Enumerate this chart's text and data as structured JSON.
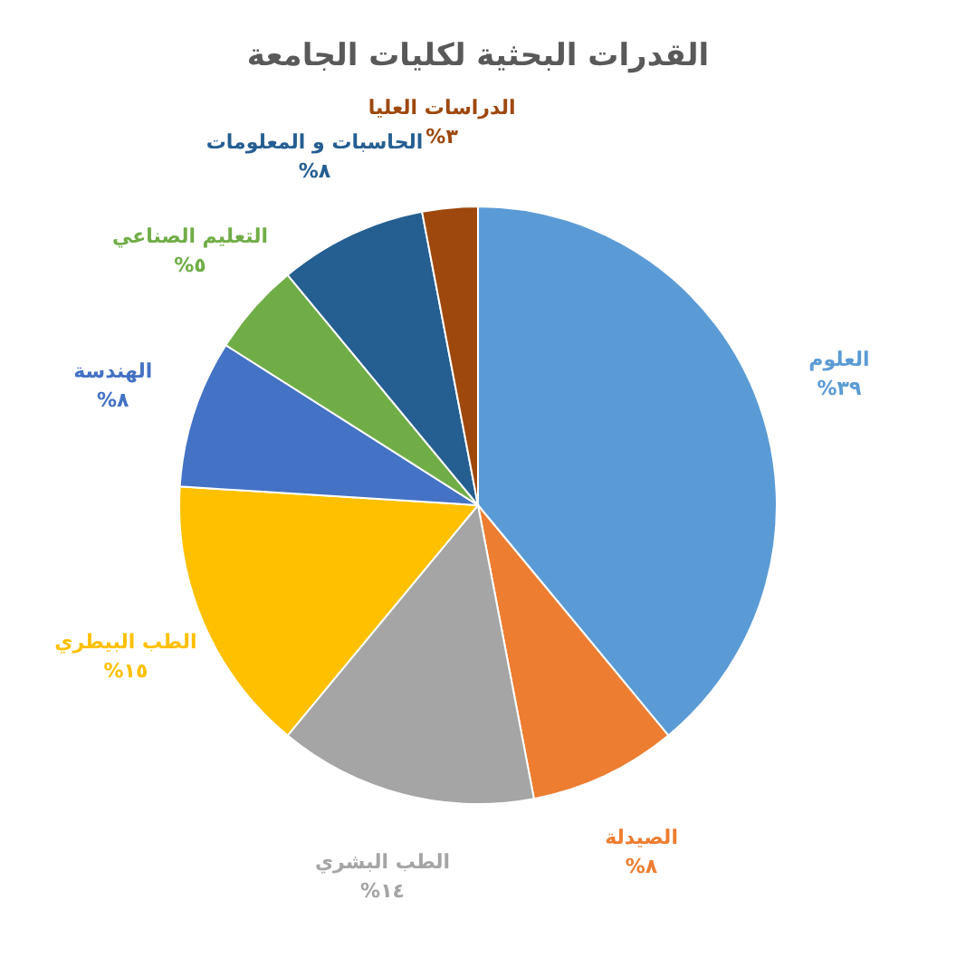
{
  "chart_data": {
    "type": "pie",
    "title": "القدرات البحثية لكليات الجامعة",
    "categories": [
      "العلوم",
      "الصيدلة",
      "الطب البشري",
      "الطب البيطري",
      "الهندسة",
      "التعليم الصناعي",
      "الحاسبات و المعلومات",
      "الدراسات العليا"
    ],
    "values": [
      39,
      8,
      14,
      15,
      8,
      5,
      8,
      3
    ],
    "colors": [
      "#5b9bd5",
      "#ed7d31",
      "#a5a5a5",
      "#ffc000",
      "#4472c4",
      "#70ad47",
      "#255e91",
      "#9e480e"
    ],
    "value_labels": [
      "%٣٩",
      "%٨",
      "%١٤",
      "%١٥",
      "%٨",
      "%٥",
      "%٨",
      "%٣"
    ]
  }
}
